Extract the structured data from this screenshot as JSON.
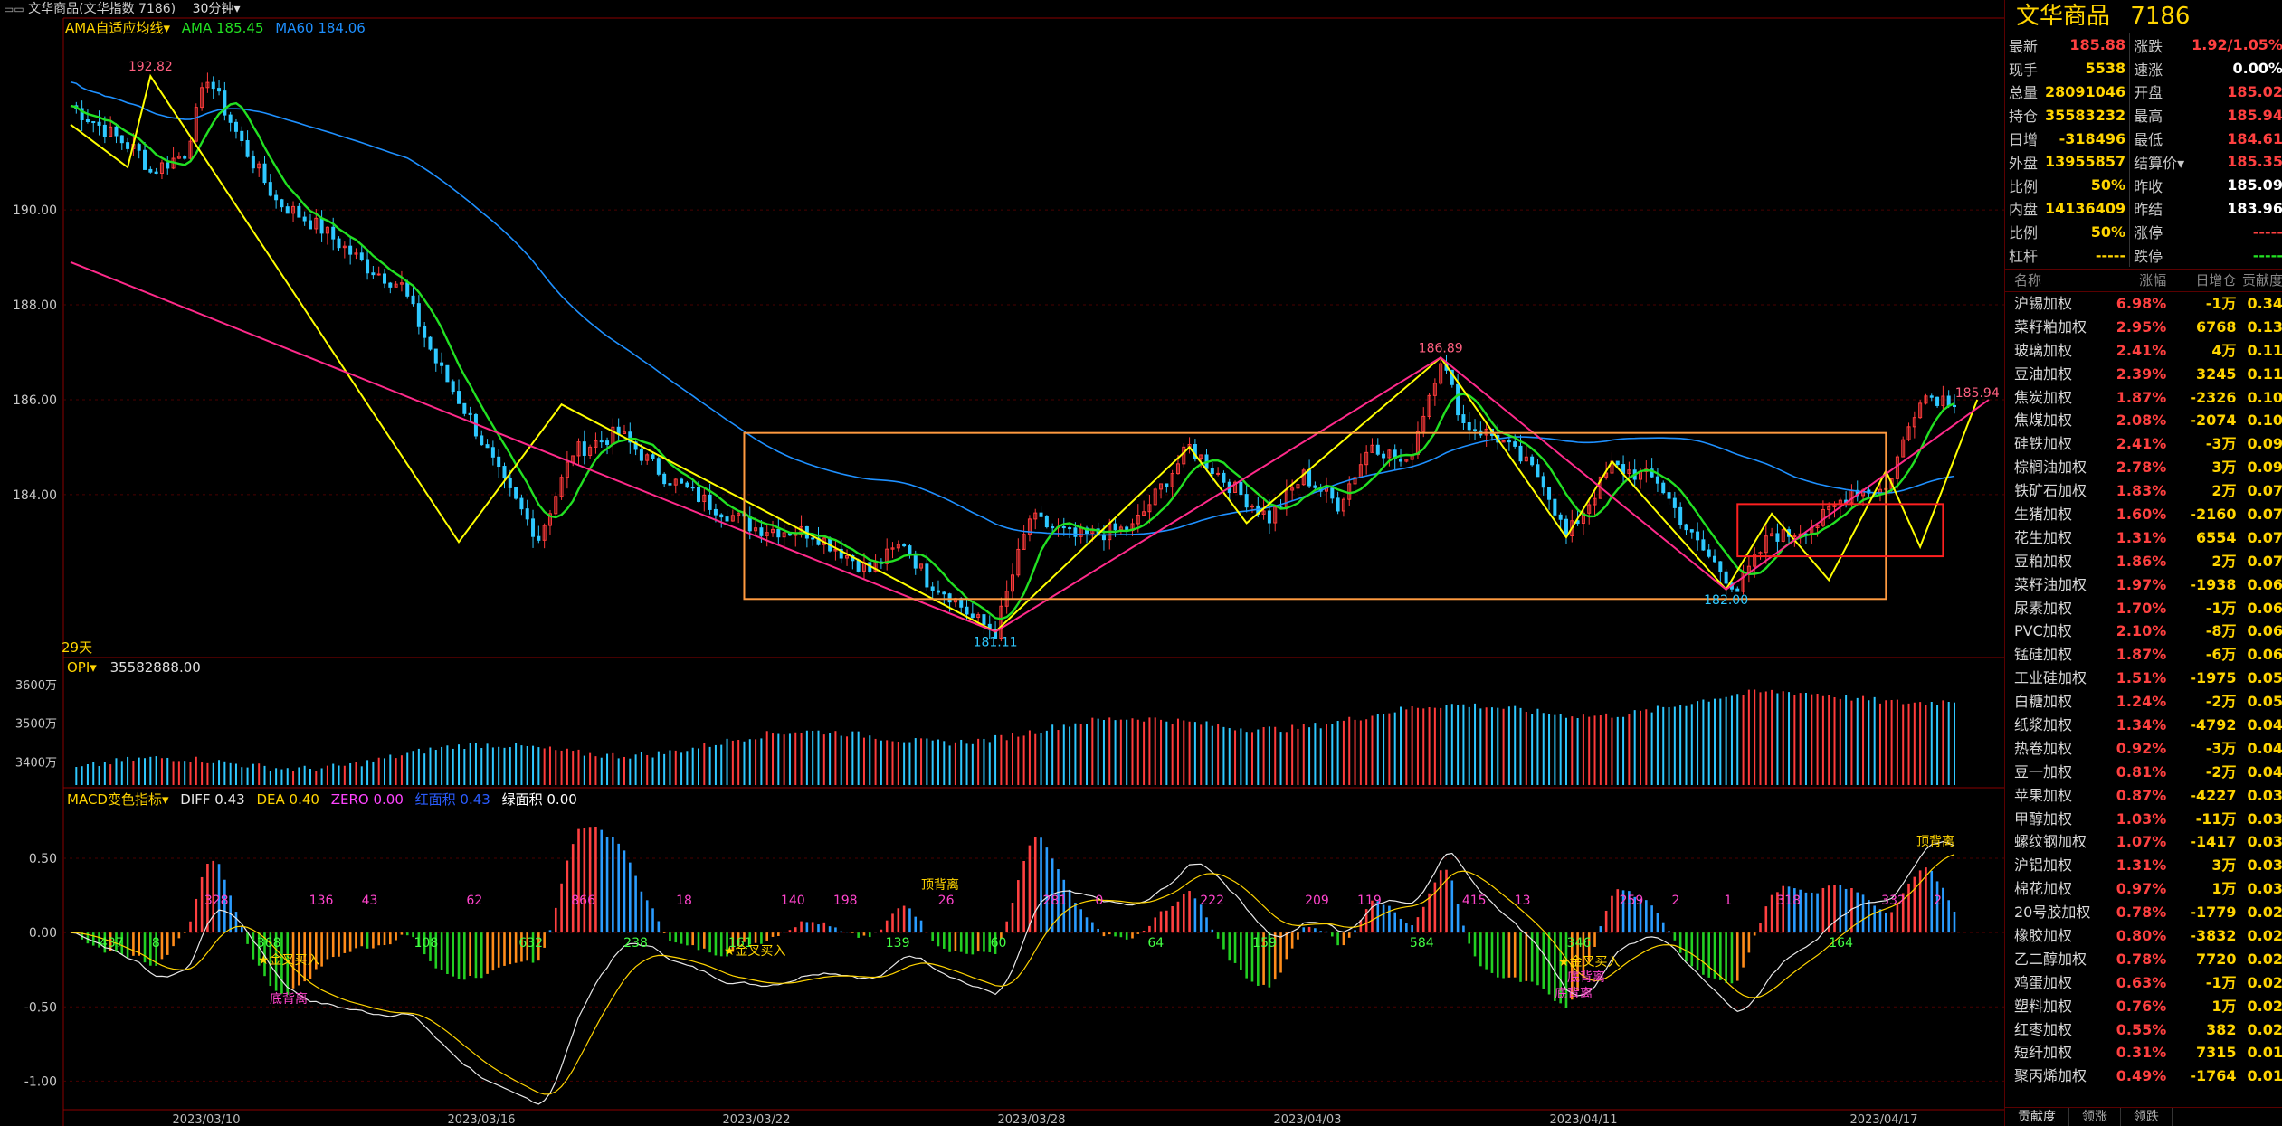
{
  "window": {
    "title": "文华商品(文华指数 7186)",
    "period": "30分钟"
  },
  "chart": {
    "days_label": "29天",
    "colors": {
      "up": "#ff3b3b",
      "down": "#2ec8ff",
      "ama": "#22e022",
      "ma60": "#1e90ff",
      "wave_yellow": "#ffff00",
      "wave_pink": "#ff2a8a",
      "box_orange": "#ff9a40",
      "box_red": "#ff2020"
    },
    "main_legend": {
      "indicator": "AMA自适应均线",
      "ama": "AMA 185.45",
      "ma60": "MA60 184.06"
    },
    "price_axis": [
      "190.00",
      "188.00",
      "186.00",
      "184.00"
    ],
    "price_marks": {
      "high1": "192.82",
      "low1": "181.11",
      "high2": "186.89",
      "low2": "182.00",
      "last": "185.94"
    },
    "opi_legend": {
      "name": "OPI",
      "value": "35582888.00"
    },
    "opi_axis": [
      "3600万",
      "3500万",
      "3400万"
    ],
    "macd_legend": {
      "name": "MACD变色指标",
      "diff": "DIFF 0.43",
      "dea": "DEA 0.40",
      "zero": "ZERO 0.00",
      "red_area": "红面积 0.43",
      "green_area": "绿面积 0.00"
    },
    "macd_axis": [
      "0.50",
      "0.00",
      "-0.50",
      "-1.00"
    ],
    "macd_area_labels": [
      {
        "t": "437",
        "c": "g"
      },
      {
        "t": "8",
        "c": "g"
      },
      {
        "t": "328",
        "c": "m"
      },
      {
        "t": "368",
        "c": "g"
      },
      {
        "t": "136",
        "c": "m"
      },
      {
        "t": "43",
        "c": "m"
      },
      {
        "t": "108",
        "c": "g"
      },
      {
        "t": "62",
        "c": "m"
      },
      {
        "t": "632",
        "c": "g"
      },
      {
        "t": "866",
        "c": "m"
      },
      {
        "t": "238",
        "c": "g"
      },
      {
        "t": "18",
        "c": "m"
      },
      {
        "t": "161",
        "c": "g"
      },
      {
        "t": "140",
        "c": "m"
      },
      {
        "t": "198",
        "c": "m"
      },
      {
        "t": "139",
        "c": "g"
      },
      {
        "t": "26",
        "c": "m"
      },
      {
        "t": "60",
        "c": "g"
      },
      {
        "t": "281",
        "c": "m"
      },
      {
        "t": "0",
        "c": "m"
      },
      {
        "t": "64",
        "c": "g"
      },
      {
        "t": "222",
        "c": "m"
      },
      {
        "t": "159",
        "c": "g"
      },
      {
        "t": "209",
        "c": "m"
      },
      {
        "t": "119",
        "c": "m"
      },
      {
        "t": "584",
        "c": "g"
      },
      {
        "t": "415",
        "c": "m"
      },
      {
        "t": "13",
        "c": "m"
      },
      {
        "t": "346",
        "c": "g"
      },
      {
        "t": "259",
        "c": "m"
      },
      {
        "t": "2",
        "c": "m"
      },
      {
        "t": "1",
        "c": "m"
      },
      {
        "t": "318",
        "c": "m"
      },
      {
        "t": "164",
        "c": "g"
      },
      {
        "t": "332",
        "c": "m"
      },
      {
        "t": "2",
        "c": "m"
      }
    ],
    "macd_signals": {
      "golden1": "★金叉买入",
      "bottom_div1": "底背离",
      "golden2": "★金叉买入",
      "top_div1": "顶背离",
      "golden3": "★金叉买入",
      "bottom_div2": "底背离",
      "bottom_div3": "底背离",
      "top_div2": "顶背离"
    },
    "dates": [
      "2023/03/10",
      "2023/03/16",
      "2023/03/22",
      "2023/03/28",
      "2023/04/03",
      "2023/04/11",
      "2023/04/17"
    ]
  },
  "side": {
    "name": "文华商品",
    "code": "7186",
    "quote": [
      {
        "l1": "最新",
        "v1": "185.88",
        "c1": "#ff4040",
        "l2": "涨跌",
        "v2": "1.92/1.05%",
        "c2": "#ff4040"
      },
      {
        "l1": "现手",
        "v1": "5538",
        "c1": "#ffd400",
        "l2": "速涨",
        "v2": "0.00%",
        "c2": "#ffffff"
      },
      {
        "l1": "总量",
        "v1": "28091046",
        "c1": "#ffd400",
        "l2": "开盘",
        "v2": "185.02",
        "c2": "#ff4040"
      },
      {
        "l1": "持仓",
        "v1": "35583232",
        "c1": "#ffd400",
        "l2": "最高",
        "v2": "185.94",
        "c2": "#ff4040"
      },
      {
        "l1": "日增",
        "v1": "-318496",
        "c1": "#ffd400",
        "l2": "最低",
        "v2": "184.61",
        "c2": "#ff4040"
      },
      {
        "l1": "外盘",
        "v1": "13955857",
        "c1": "#ffd400",
        "l2": "结算价▾",
        "v2": "185.35",
        "c2": "#ff4040"
      },
      {
        "l1": "比例",
        "v1": "50%",
        "c1": "#ffd400",
        "l2": "昨收",
        "v2": "185.09",
        "c2": "#ffffff"
      },
      {
        "l1": "内盘",
        "v1": "14136409",
        "c1": "#ffd400",
        "l2": "昨结",
        "v2": "183.96",
        "c2": "#ffffff"
      },
      {
        "l1": "比例",
        "v1": "50%",
        "c1": "#ffd400",
        "l2": "涨停",
        "v2": "-----",
        "c2": "#ff4040"
      },
      {
        "l1": "杠杆",
        "v1": "-----",
        "c1": "#ffd400",
        "l2": "跌停",
        "v2": "-----",
        "c2": "#22e022"
      }
    ],
    "list_headers": [
      "名称",
      "涨幅",
      "日增仓",
      "贡献度"
    ],
    "list": [
      [
        "沪锡加权",
        "6.98%",
        "-1万",
        "0.34"
      ],
      [
        "菜籽粕加权",
        "2.95%",
        "6768",
        "0.13"
      ],
      [
        "玻璃加权",
        "2.41%",
        "4万",
        "0.11"
      ],
      [
        "豆油加权",
        "2.39%",
        "3245",
        "0.11"
      ],
      [
        "焦炭加权",
        "1.87%",
        "-2326",
        "0.10"
      ],
      [
        "焦煤加权",
        "2.08%",
        "-2074",
        "0.10"
      ],
      [
        "硅铁加权",
        "2.41%",
        "-3万",
        "0.09"
      ],
      [
        "棕榈油加权",
        "2.78%",
        "3万",
        "0.09"
      ],
      [
        "铁矿石加权",
        "1.83%",
        "2万",
        "0.07"
      ],
      [
        "生猪加权",
        "1.60%",
        "-2160",
        "0.07"
      ],
      [
        "花生加权",
        "1.31%",
        "6554",
        "0.07"
      ],
      [
        "豆粕加权",
        "1.86%",
        "2万",
        "0.07"
      ],
      [
        "菜籽油加权",
        "1.97%",
        "-1938",
        "0.06"
      ],
      [
        "尿素加权",
        "1.70%",
        "-1万",
        "0.06"
      ],
      [
        "PVC加权",
        "2.10%",
        "-8万",
        "0.06"
      ],
      [
        "锰硅加权",
        "1.87%",
        "-6万",
        "0.06"
      ],
      [
        "工业硅加权",
        "1.51%",
        "-1975",
        "0.05"
      ],
      [
        "白糖加权",
        "1.24%",
        "-2万",
        "0.05"
      ],
      [
        "纸浆加权",
        "1.34%",
        "-4792",
        "0.04"
      ],
      [
        "热卷加权",
        "0.92%",
        "-3万",
        "0.04"
      ],
      [
        "豆一加权",
        "0.81%",
        "-2万",
        "0.04"
      ],
      [
        "苹果加权",
        "0.87%",
        "-4227",
        "0.03"
      ],
      [
        "甲醇加权",
        "1.03%",
        "-11万",
        "0.03"
      ],
      [
        "螺纹钢加权",
        "1.07%",
        "-1417",
        "0.03"
      ],
      [
        "沪铝加权",
        "1.31%",
        "3万",
        "0.03"
      ],
      [
        "棉花加权",
        "0.97%",
        "1万",
        "0.03"
      ],
      [
        "20号胶加权",
        "0.78%",
        "-1779",
        "0.02"
      ],
      [
        "橡胶加权",
        "0.80%",
        "-3832",
        "0.02"
      ],
      [
        "乙二醇加权",
        "0.78%",
        "7720",
        "0.02"
      ],
      [
        "鸡蛋加权",
        "0.63%",
        "-1万",
        "0.02"
      ],
      [
        "塑料加权",
        "0.76%",
        "1万",
        "0.02"
      ],
      [
        "红枣加权",
        "0.55%",
        "382",
        "0.02"
      ],
      [
        "短纤加权",
        "0.31%",
        "7315",
        "0.01"
      ],
      [
        "聚丙烯加权",
        "0.49%",
        "-1764",
        "0.01"
      ]
    ],
    "tabs": [
      "贡献度",
      "领涨",
      "领跌"
    ]
  }
}
